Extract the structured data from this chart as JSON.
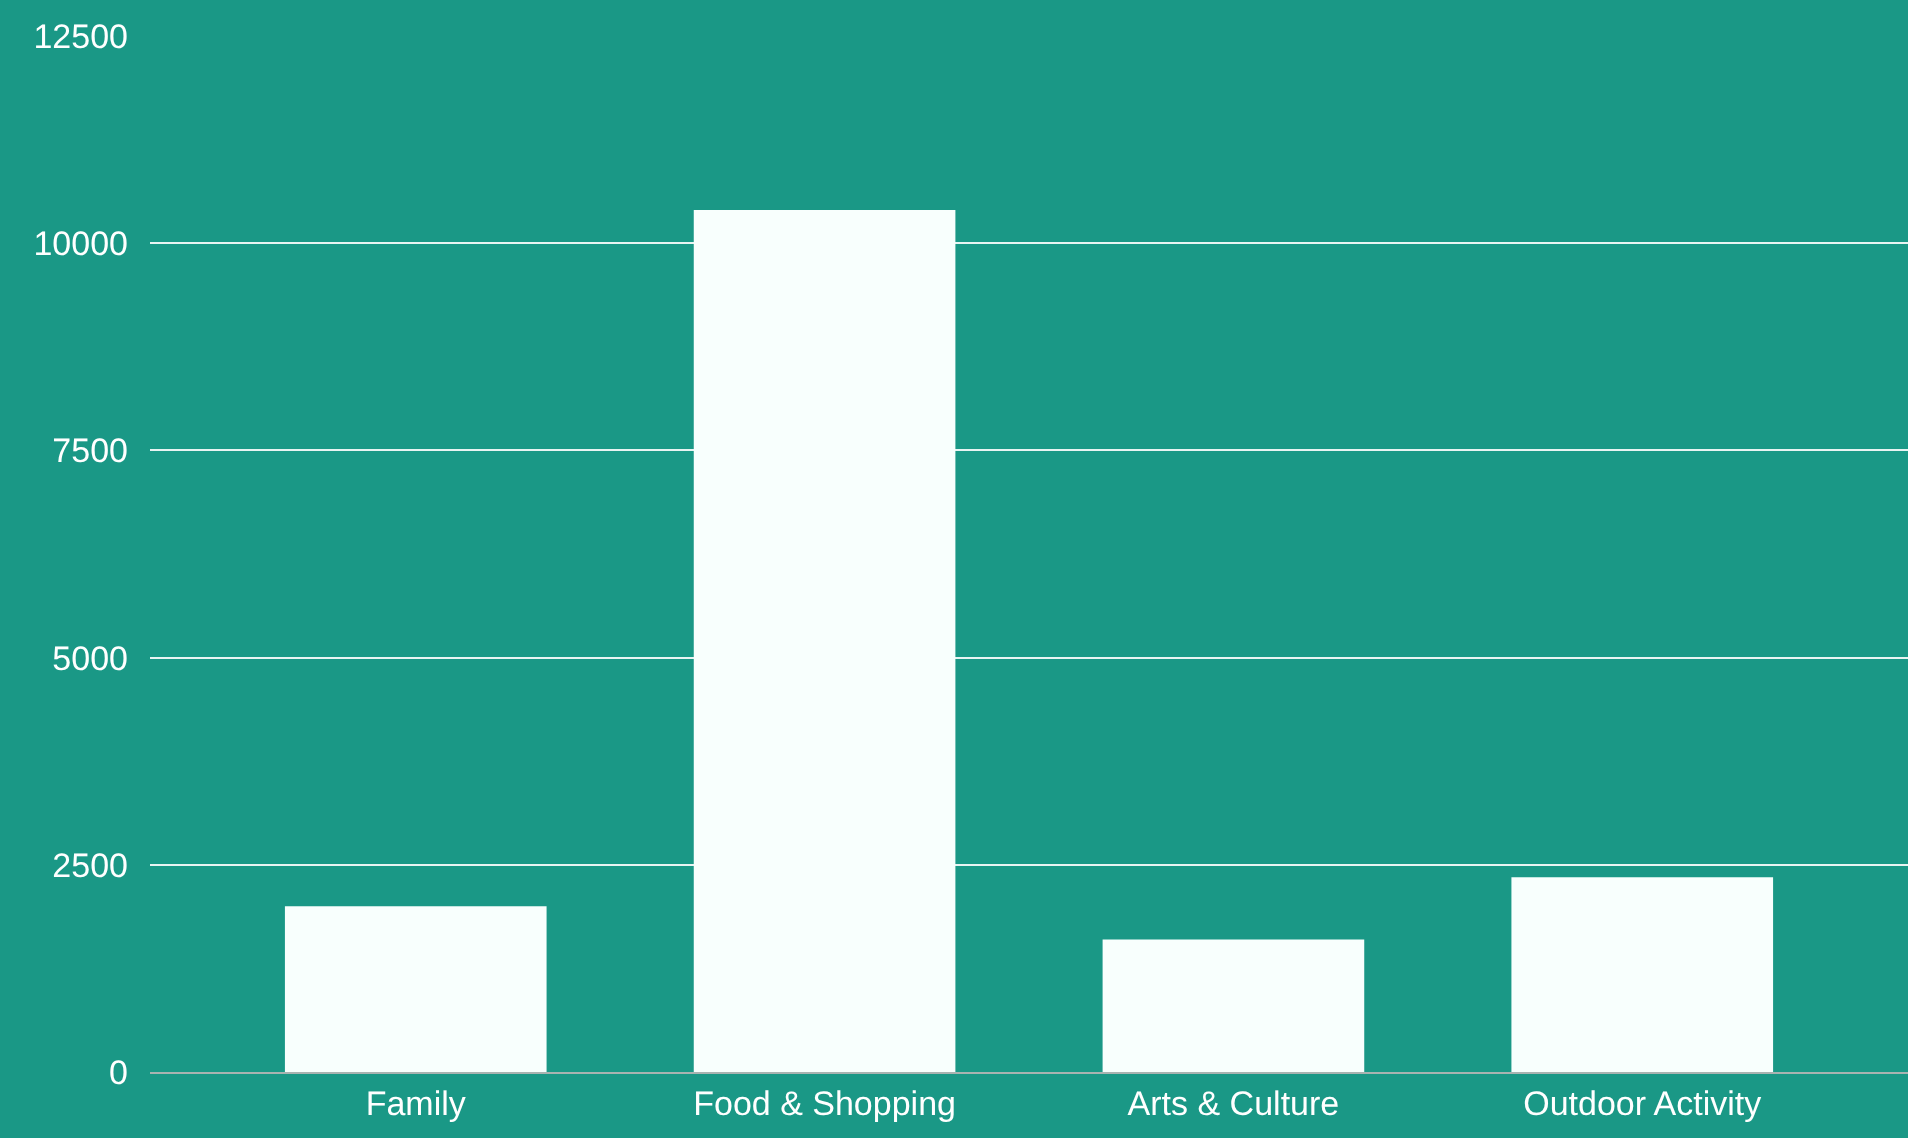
{
  "chart_data": {
    "type": "bar",
    "categories": [
      "Family",
      "Food & Shopping",
      "Arts & Culture",
      "Outdoor Activity"
    ],
    "values": [
      2000,
      10400,
      1600,
      2350
    ],
    "color": "#f8fffd",
    "ylim": [
      0,
      12500
    ],
    "yticks": [
      0,
      2500,
      5000,
      7500,
      10000,
      12500
    ],
    "grid": "y"
  }
}
